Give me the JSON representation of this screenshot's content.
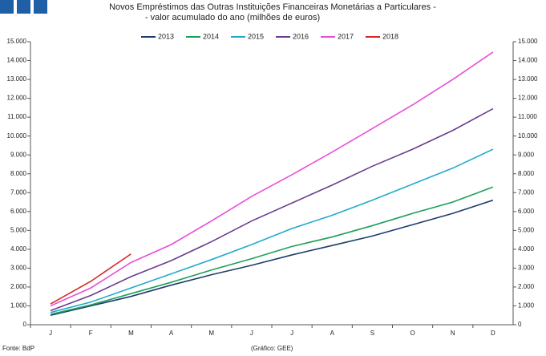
{
  "chart_data": {
    "type": "line",
    "title": "Novos Empréstimos das Outras Instituições Financeiras Monetárias a Particulares -",
    "subtitle": "- valor acumulado do ano (milhões de euros)",
    "source": "Fonte: BdP",
    "credit": "(Gráfico: GEE)",
    "legend": "top",
    "categories": [
      "J",
      "F",
      "M",
      "A",
      "M",
      "J",
      "J",
      "A",
      "S",
      "O",
      "N",
      "D"
    ],
    "series": [
      {
        "name": "2013",
        "color": "#1f3c6e",
        "values": [
          500,
          1000,
          1500,
          2100,
          2650,
          3150,
          3700,
          4200,
          4700,
          5300,
          5900,
          6600
        ]
      },
      {
        "name": "2014",
        "color": "#1f9e5a",
        "values": [
          550,
          1050,
          1650,
          2250,
          2900,
          3500,
          4150,
          4650,
          5250,
          5900,
          6500,
          7300
        ]
      },
      {
        "name": "2015",
        "color": "#22aacc",
        "values": [
          650,
          1200,
          1950,
          2700,
          3450,
          4250,
          5100,
          5800,
          6600,
          7450,
          8300,
          9300
        ]
      },
      {
        "name": "2016",
        "color": "#6a3d8f",
        "values": [
          750,
          1550,
          2550,
          3400,
          4400,
          5500,
          6450,
          7400,
          8400,
          9300,
          10300,
          11450
        ]
      },
      {
        "name": "2017",
        "color": "#e84fd6",
        "values": [
          1000,
          1950,
          3300,
          4250,
          5500,
          6800,
          7950,
          9150,
          10400,
          11650,
          13000,
          14450
        ]
      },
      {
        "name": "2018",
        "color": "#d62728",
        "values": [
          1100,
          2300,
          3750,
          null,
          null,
          null,
          null,
          null,
          null,
          null,
          null,
          null
        ]
      }
    ],
    "ylim": [
      0,
      15000
    ],
    "yticks": [
      0,
      {
        "value": 1000,
        "label": "1.000"
      },
      {
        "value": 2000,
        "label": "2.000"
      },
      {
        "value": 3000,
        "label": "3.000"
      },
      {
        "value": 4000,
        "label": "4.000"
      },
      {
        "value": 5000,
        "label": "5.000"
      },
      {
        "value": 6000,
        "label": "6.000"
      },
      {
        "value": 7000,
        "label": "7.000"
      },
      {
        "value": 8000,
        "label": "8.000"
      },
      {
        "value": 9000,
        "label": "9.000"
      },
      {
        "value": 10000,
        "label": "10.000"
      },
      {
        "value": 11000,
        "label": "11.000"
      },
      {
        "value": 12000,
        "label": "12.000"
      },
      {
        "value": 13000,
        "label": "13.000"
      },
      {
        "value": 14000,
        "label": "14.000"
      },
      {
        "value": 15000,
        "label": "15.000"
      }
    ],
    "y2lim": [
      0,
      15000
    ],
    "y2ticks": [
      0,
      {
        "value": 1000,
        "label": "1.000"
      },
      {
        "value": 2000,
        "label": "2.000"
      },
      {
        "value": 3000,
        "label": "3.000"
      },
      {
        "value": 4000,
        "label": "4.000"
      },
      {
        "value": 5000,
        "label": "5.000"
      },
      {
        "value": 6000,
        "label": "6.000"
      },
      {
        "value": 7000,
        "label": "7.000"
      },
      {
        "value": 8000,
        "label": "8.000"
      },
      {
        "value": 9000,
        "label": "9.000"
      },
      {
        "value": 10000,
        "label": "10.000"
      },
      {
        "value": 11000,
        "label": "11.000"
      },
      {
        "value": 12000,
        "label": "12.000"
      },
      {
        "value": 13000,
        "label": "13.000"
      },
      {
        "value": 14000,
        "label": "14.000"
      },
      {
        "value": 15000,
        "label": "15.000"
      }
    ]
  }
}
